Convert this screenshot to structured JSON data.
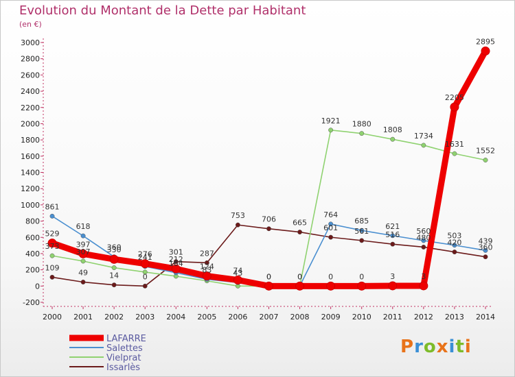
{
  "title": "Evolution du Montant de la Dette par Habitant",
  "unit": "(en €)",
  "logo": "Proxiti",
  "chart_data": {
    "type": "line",
    "x": [
      "2000",
      "2001",
      "2002",
      "2003",
      "2004",
      "2005",
      "2006",
      "2007",
      "2008",
      "2009",
      "2010",
      "2011",
      "2012",
      "2013",
      "2014"
    ],
    "ylim": [
      -200,
      3000
    ],
    "yticks": [
      -200,
      0,
      200,
      400,
      600,
      800,
      1000,
      1200,
      1400,
      1600,
      1800,
      2000,
      2200,
      2400,
      2600,
      2800,
      3000
    ],
    "grid": false,
    "legend_position": "bottom-left",
    "series": [
      {
        "name": "LAFARRE",
        "color": "#ee0000",
        "values": [
          529,
          397,
          330,
          276,
          212,
          124,
          74,
          0,
          0,
          0,
          0,
          3,
          3,
          2205,
          2895
        ],
        "labels": [
          "529",
          "397",
          "330",
          "276",
          "212",
          "124",
          "74",
          "0",
          "0",
          "0",
          "0",
          "3",
          "3",
          "2205",
          "2895"
        ]
      },
      {
        "name": "Salettes",
        "color": "#4a8fd0",
        "values": [
          861,
          618,
          360,
          241,
          164,
          83,
          43,
          0,
          0,
          764,
          685,
          621,
          560,
          503,
          439
        ],
        "labels": [
          "861",
          "618",
          "360",
          "241",
          "164",
          "83",
          "43",
          "0",
          "0",
          "764",
          "685",
          "621",
          "560",
          "503",
          "439"
        ]
      },
      {
        "name": "Vielprat",
        "color": "#8fd270",
        "values": [
          373,
          307,
          226,
          172,
          121,
          64,
          0,
          0,
          0,
          1921,
          1880,
          1808,
          1734,
          1631,
          1552
        ],
        "labels": [
          "373",
          "307",
          "",
          "",
          "",
          "",
          "",
          "",
          "",
          "1921",
          "1880",
          "1808",
          "1734",
          "1631",
          "1552"
        ]
      },
      {
        "name": "Issarlès",
        "color": "#6b1a1a",
        "values": [
          109,
          49,
          14,
          0,
          301,
          287,
          753,
          706,
          665,
          601,
          561,
          516,
          480,
          420,
          360
        ],
        "labels": [
          "109",
          "49",
          "14",
          "0",
          "301",
          "287",
          "753",
          "706",
          "665",
          "601",
          "561",
          "516",
          "480",
          "420",
          "360"
        ]
      }
    ]
  }
}
